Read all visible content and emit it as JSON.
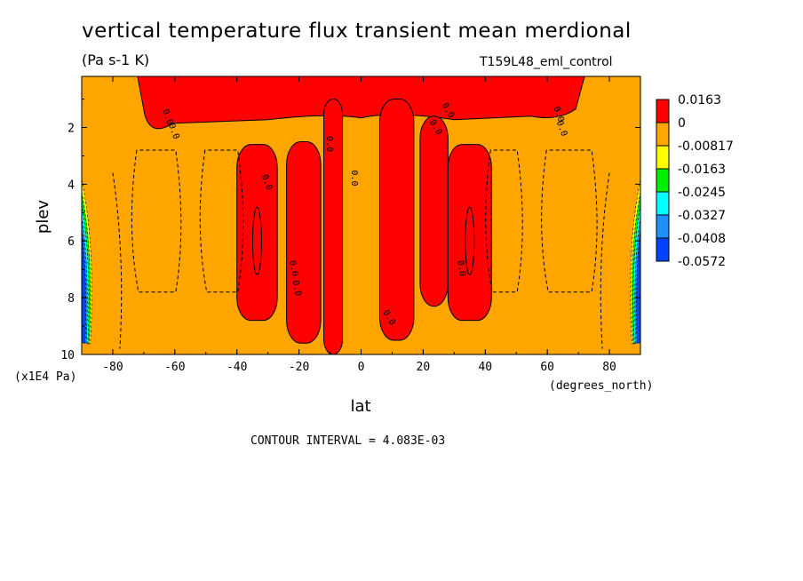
{
  "chart_data": {
    "type": "heatmap",
    "title": "vertical temperature flux transient mean merdional",
    "units": "(Pa s-1 K)",
    "run_label": "T159L48_eml_control",
    "xlabel": "lat",
    "x_units": "(degrees_north)",
    "ylabel": "plev",
    "y_units": "(x1E4 Pa)",
    "xlim": [
      -90,
      90
    ],
    "ylim": [
      0.2,
      10
    ],
    "x_ticks": [
      -80,
      -60,
      -40,
      -20,
      0,
      20,
      40,
      60,
      80
    ],
    "x_tick_labels": [
      "-80",
      "-60",
      "-40",
      "-20",
      "0",
      "20",
      "40",
      "60",
      "80"
    ],
    "y_ticks": [
      2,
      4,
      6,
      8,
      10
    ],
    "y_tick_labels": [
      "2",
      "4",
      "6",
      "8",
      "10"
    ],
    "contour_interval_text": "CONTOUR INTERVAL = 4.083E-03",
    "contour_line_label": "0.0",
    "legend": {
      "labels": [
        "0.0163",
        "0",
        "-0.00817",
        "-0.0163",
        "-0.0245",
        "-0.0327",
        "-0.0408",
        "-0.0572"
      ],
      "colors": [
        "#ff0000",
        "#ffa500",
        "#ffff00",
        "#00ee00",
        "#00ffff",
        "#1e90ff",
        "#0044ff"
      ]
    },
    "background_color": "#ffa500",
    "positive_color": "#ff0000",
    "positive_regions": [
      {
        "name": "upper-band",
        "lat_min": -72,
        "lat_max": 72,
        "plev_min": 0.2,
        "plev_max": 1.6
      },
      {
        "name": "sh-midlat-jet",
        "lat_min": -40,
        "lat_max": -27,
        "plev_min": 2.6,
        "plev_max": 8.8
      },
      {
        "name": "sh-subtropic-1",
        "lat_min": -24,
        "lat_max": -13,
        "plev_min": 2.5,
        "plev_max": 9.6
      },
      {
        "name": "sh-subtropic-2",
        "lat_min": -12,
        "lat_max": -6,
        "plev_min": 1.0,
        "plev_max": 10.0
      },
      {
        "name": "nh-tropic",
        "lat_min": 6,
        "lat_max": 17,
        "plev_min": 1.0,
        "plev_max": 9.5
      },
      {
        "name": "nh-subtropic",
        "lat_min": 19,
        "lat_max": 28,
        "plev_min": 1.6,
        "plev_max": 8.3
      },
      {
        "name": "nh-midlat-jet",
        "lat_min": 28,
        "lat_max": 42,
        "plev_min": 2.6,
        "plev_max": 8.8
      }
    ],
    "negative_regions": [
      {
        "name": "sh-polar",
        "lat_min": -90,
        "lat_max": -84,
        "plev_min": 3.4,
        "plev_max": 10,
        "min_value": -0.0572
      },
      {
        "name": "nh-polar",
        "lat_min": 84,
        "lat_max": 90,
        "plev_min": 3.4,
        "plev_max": 10,
        "min_value": -0.0572
      }
    ]
  }
}
